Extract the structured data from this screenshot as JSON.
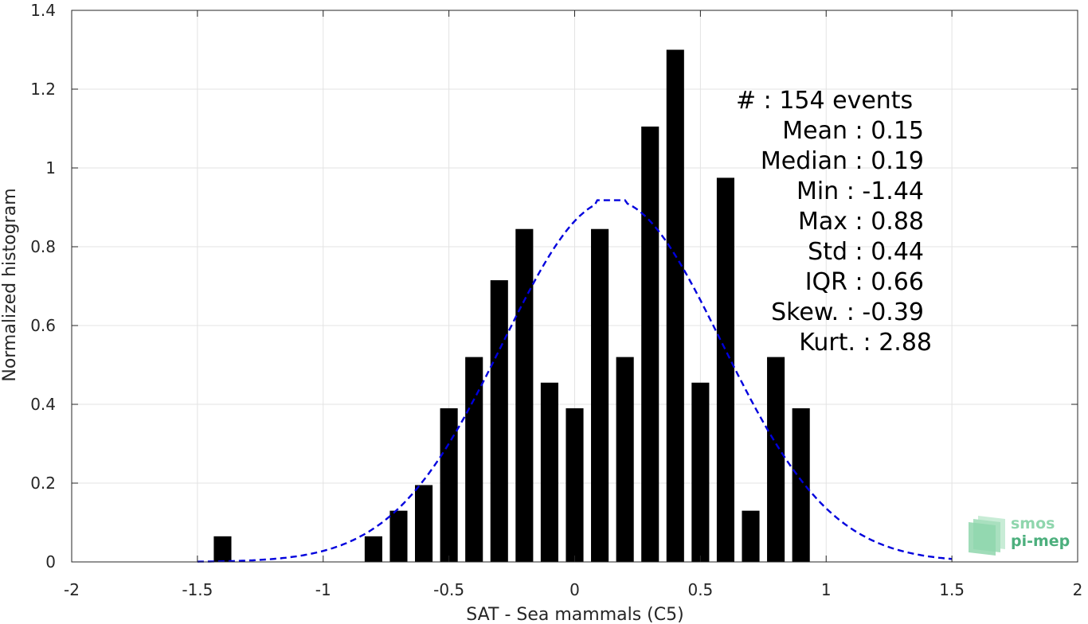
{
  "chart_data": {
    "type": "bar",
    "xlabel": "SAT - Sea mammals (C5)",
    "ylabel": "Normalized histogram",
    "xlim": [
      -2,
      2
    ],
    "ylim": [
      0,
      1.4
    ],
    "xticks": [
      -2,
      -1.5,
      -1,
      -0.5,
      0,
      0.5,
      1,
      1.5,
      2
    ],
    "xtick_labels": [
      "-2",
      "-1.5",
      "-1",
      "-0.5",
      "0",
      "0.5",
      "1",
      "1.5",
      "2"
    ],
    "yticks": [
      0,
      0.2,
      0.4,
      0.6,
      0.8,
      1,
      1.2,
      1.4
    ],
    "ytick_labels": [
      "0",
      "0.2",
      "0.4",
      "0.6",
      "0.8",
      "1",
      "1.2",
      "1.4"
    ],
    "grid": true,
    "bar_color": "#000000",
    "bar_width": 0.07,
    "bars": [
      {
        "x": -1.4,
        "y": 0.065
      },
      {
        "x": -0.8,
        "y": 0.065
      },
      {
        "x": -0.7,
        "y": 0.13
      },
      {
        "x": -0.6,
        "y": 0.195
      },
      {
        "x": -0.5,
        "y": 0.39
      },
      {
        "x": -0.4,
        "y": 0.52
      },
      {
        "x": -0.3,
        "y": 0.715
      },
      {
        "x": -0.2,
        "y": 0.845
      },
      {
        "x": -0.1,
        "y": 0.455
      },
      {
        "x": 0.0,
        "y": 0.39
      },
      {
        "x": 0.1,
        "y": 0.845
      },
      {
        "x": 0.2,
        "y": 0.52
      },
      {
        "x": 0.3,
        "y": 1.105
      },
      {
        "x": 0.4,
        "y": 1.3
      },
      {
        "x": 0.5,
        "y": 0.455
      },
      {
        "x": 0.6,
        "y": 0.975
      },
      {
        "x": 0.7,
        "y": 0.13
      },
      {
        "x": 0.8,
        "y": 0.52
      },
      {
        "x": 0.9,
        "y": 0.39
      }
    ],
    "fit_curve": {
      "style": "dashed",
      "color": "#0000dd",
      "x_range": [
        -1.5,
        1.5
      ],
      "mean": 0.15,
      "std": 0.435,
      "peak": 0.918
    },
    "annotations": [
      {
        "text": "#  : 154 events",
        "align": "left"
      },
      {
        "text": "Mean : 0.15",
        "align": "right"
      },
      {
        "text": "Median : 0.19",
        "align": "right"
      },
      {
        "text": "Min : -1.44",
        "align": "right"
      },
      {
        "text": "Max : 0.88",
        "align": "right"
      },
      {
        "text": "Std : 0.44",
        "align": "right"
      },
      {
        "text": "IQR : 0.66",
        "align": "right"
      },
      {
        "text": "Skew. : -0.39",
        "align": "right"
      },
      {
        "text": "Kurt. : 2.88",
        "align": "right"
      }
    ]
  },
  "logo": {
    "line1": "smos",
    "line2": "pi-mep",
    "color_light": "#8fd6ad",
    "color_dark": "#4caf7d"
  }
}
